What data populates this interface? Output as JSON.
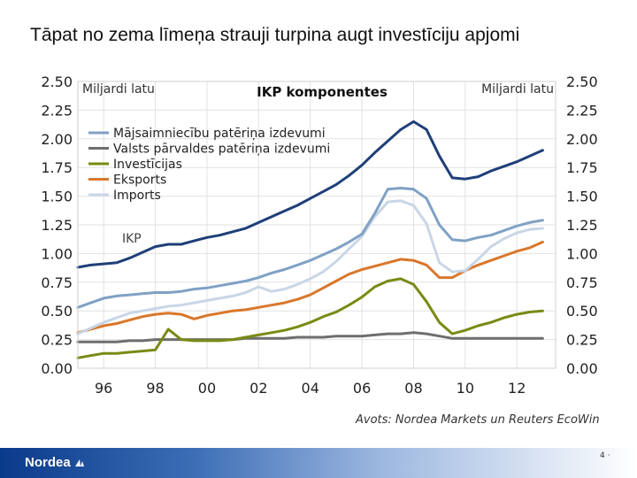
{
  "slide": {
    "title": "Tāpat no zema līmeņa strauji turpina augt investīciju apjomi",
    "source": "Avots: Nordea Markets un Reuters EcoWin",
    "logo_text": "Nordea",
    "page_number": "4 ·"
  },
  "colors": {
    "households": "#7fa1c4",
    "government": "#6e6e6e",
    "investment": "#7a8a12",
    "exports": "#d9772b",
    "imports": "#c9d6e6",
    "gdp": "#1f3f79"
  },
  "chart_data": {
    "type": "line",
    "title": "IKP komponentes",
    "ylabel_left": "Miljardi latu",
    "ylabel_right": "Miljardi latu",
    "ylim": [
      0,
      2.5
    ],
    "yticks": [
      "0.00",
      "0.25",
      "0.50",
      "0.75",
      "1.00",
      "1.25",
      "1.50",
      "1.75",
      "2.00",
      "2.25",
      "2.50"
    ],
    "xlim": [
      1995,
      2013.5
    ],
    "xticks": [
      {
        "value": 1996,
        "label": "96"
      },
      {
        "value": 1998,
        "label": "98"
      },
      {
        "value": 2000,
        "label": "00"
      },
      {
        "value": 2002,
        "label": "02"
      },
      {
        "value": 2004,
        "label": "04"
      },
      {
        "value": 2006,
        "label": "06"
      },
      {
        "value": 2008,
        "label": "08"
      },
      {
        "value": 2010,
        "label": "10"
      },
      {
        "value": 2012,
        "label": "12"
      }
    ],
    "grid": true,
    "legend_position": "top-left",
    "x": [
      1995,
      1995.5,
      1996,
      1996.5,
      1997,
      1997.5,
      1998,
      1998.5,
      1999,
      1999.5,
      2000,
      2000.5,
      2001,
      2001.5,
      2002,
      2002.5,
      2003,
      2003.5,
      2004,
      2004.5,
      2005,
      2005.5,
      2006,
      2006.5,
      2007,
      2007.5,
      2008,
      2008.5,
      2009,
      2009.5,
      2010,
      2010.5,
      2011,
      2011.5,
      2012,
      2012.5,
      2013
    ],
    "series": [
      {
        "key": "gdp",
        "name": "IKP",
        "label_in_legend": false,
        "annotation": "IKP",
        "values": [
          0.88,
          0.9,
          0.91,
          0.92,
          0.96,
          1.01,
          1.06,
          1.08,
          1.08,
          1.11,
          1.14,
          1.16,
          1.19,
          1.22,
          1.27,
          1.32,
          1.37,
          1.42,
          1.48,
          1.54,
          1.6,
          1.68,
          1.77,
          1.88,
          1.98,
          2.08,
          2.15,
          2.08,
          1.85,
          1.66,
          1.65,
          1.67,
          1.72,
          1.76,
          1.8,
          1.85,
          1.9
        ]
      },
      {
        "key": "households",
        "name": "Mājsaimniecību patēriņa izdevumi",
        "values": [
          0.53,
          0.57,
          0.61,
          0.63,
          0.64,
          0.65,
          0.66,
          0.66,
          0.67,
          0.69,
          0.7,
          0.72,
          0.74,
          0.76,
          0.79,
          0.83,
          0.86,
          0.9,
          0.94,
          0.99,
          1.04,
          1.1,
          1.17,
          1.35,
          1.56,
          1.57,
          1.56,
          1.48,
          1.25,
          1.12,
          1.11,
          1.14,
          1.16,
          1.2,
          1.24,
          1.27,
          1.29
        ]
      },
      {
        "key": "government",
        "name": "Valsts pārvaldes patēriņa izdevumi",
        "values": [
          0.23,
          0.23,
          0.23,
          0.23,
          0.24,
          0.24,
          0.25,
          0.25,
          0.25,
          0.25,
          0.25,
          0.25,
          0.25,
          0.26,
          0.26,
          0.26,
          0.26,
          0.27,
          0.27,
          0.27,
          0.28,
          0.28,
          0.28,
          0.29,
          0.3,
          0.3,
          0.31,
          0.3,
          0.28,
          0.26,
          0.26,
          0.26,
          0.26,
          0.26,
          0.26,
          0.26,
          0.26
        ]
      },
      {
        "key": "investment",
        "name": "Investīcijas",
        "values": [
          0.09,
          0.11,
          0.13,
          0.13,
          0.14,
          0.15,
          0.16,
          0.34,
          0.25,
          0.24,
          0.24,
          0.24,
          0.25,
          0.27,
          0.29,
          0.31,
          0.33,
          0.36,
          0.4,
          0.45,
          0.49,
          0.55,
          0.62,
          0.71,
          0.76,
          0.78,
          0.73,
          0.58,
          0.4,
          0.3,
          0.33,
          0.37,
          0.4,
          0.44,
          0.47,
          0.49,
          0.5
        ]
      },
      {
        "key": "exports",
        "name": "Eksports",
        "values": [
          0.31,
          0.34,
          0.37,
          0.39,
          0.42,
          0.45,
          0.47,
          0.48,
          0.47,
          0.43,
          0.46,
          0.48,
          0.5,
          0.51,
          0.53,
          0.55,
          0.57,
          0.6,
          0.64,
          0.7,
          0.76,
          0.82,
          0.86,
          0.89,
          0.92,
          0.95,
          0.94,
          0.9,
          0.79,
          0.79,
          0.85,
          0.9,
          0.94,
          0.98,
          1.02,
          1.05,
          1.1
        ]
      },
      {
        "key": "imports",
        "name": "Imports",
        "values": [
          0.3,
          0.35,
          0.4,
          0.44,
          0.48,
          0.5,
          0.52,
          0.54,
          0.55,
          0.57,
          0.59,
          0.61,
          0.63,
          0.66,
          0.71,
          0.67,
          0.69,
          0.73,
          0.78,
          0.84,
          0.93,
          1.04,
          1.15,
          1.32,
          1.45,
          1.46,
          1.42,
          1.26,
          0.92,
          0.84,
          0.85,
          0.95,
          1.06,
          1.13,
          1.18,
          1.21,
          1.22
        ]
      }
    ]
  }
}
